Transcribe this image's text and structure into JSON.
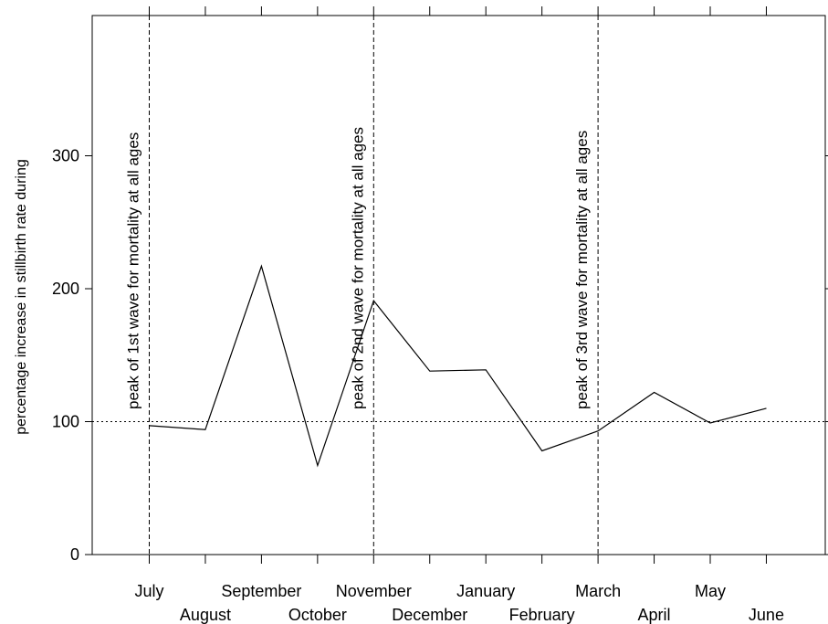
{
  "chart_data": {
    "type": "line",
    "title": "",
    "xlabel": "",
    "ylabel": "percentage increase in stillbirth rate during",
    "categories": [
      "July",
      "August",
      "September",
      "October",
      "November",
      "December",
      "January",
      "February",
      "March",
      "April",
      "May",
      "June"
    ],
    "series": [
      {
        "values": [
          97,
          94,
          217,
          67,
          191,
          138,
          139,
          78,
          93,
          122,
          99,
          110
        ]
      }
    ],
    "ylim": [
      0,
      400
    ],
    "yticks": [
      0,
      100,
      200,
      300
    ],
    "reference_line": {
      "y": 100,
      "style": "dotted"
    },
    "annotations": [
      {
        "category": "July",
        "text": "peak of 1st wave for mortality at all ages"
      },
      {
        "category": "November",
        "text": "peak of 2nd wave for mortality at all ages"
      },
      {
        "category": "March",
        "text": "peak of 3rd wave for mortality at all ages"
      }
    ],
    "grid": false,
    "legend": "none",
    "colors": {
      "line": "#000000",
      "axis": "#000000"
    }
  }
}
